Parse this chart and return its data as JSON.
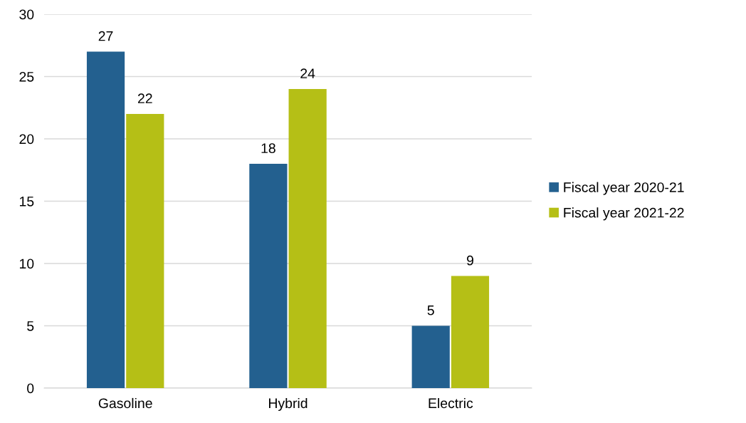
{
  "chart_data": {
    "type": "bar",
    "categories": [
      "Gasoline",
      "Hybrid",
      "Electric"
    ],
    "series": [
      {
        "name": "Fiscal year 2020-21",
        "color": "#23608f",
        "values": [
          27,
          18,
          5
        ]
      },
      {
        "name": "Fiscal year 2021-22",
        "color": "#b5bf16",
        "values": [
          22,
          24,
          9
        ]
      }
    ],
    "ylim": [
      0,
      30
    ],
    "yticks": [
      0,
      5,
      10,
      15,
      20,
      25,
      30
    ],
    "grid": "y",
    "legend": "right",
    "data_labels": true
  }
}
